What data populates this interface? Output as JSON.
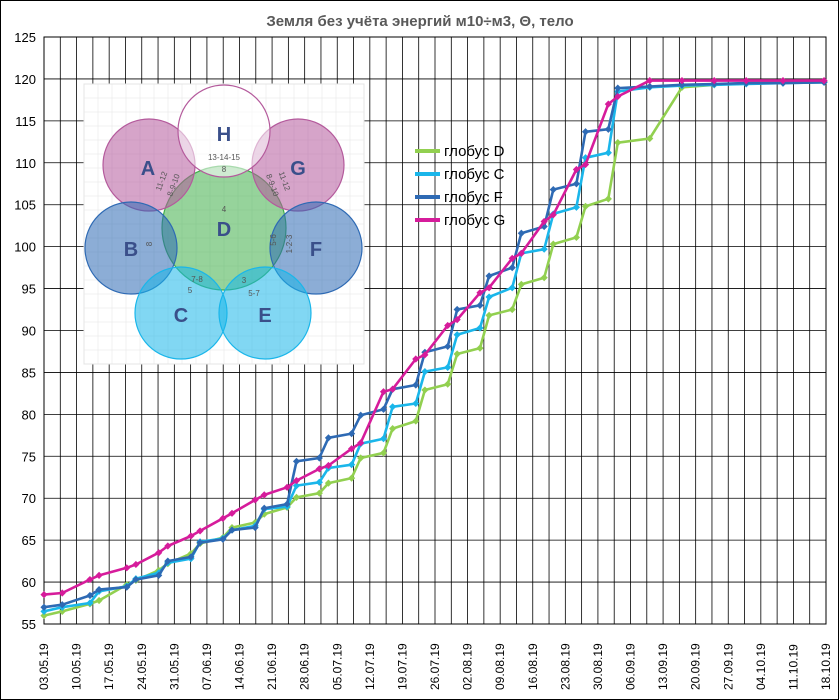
{
  "chart_data": {
    "type": "line",
    "title": "Земля без учёта энергий м10÷м3, Θ, тело",
    "ylim": [
      55,
      125
    ],
    "y_ticks": [
      55,
      60,
      65,
      70,
      75,
      80,
      85,
      90,
      95,
      100,
      105,
      110,
      115,
      120,
      125
    ],
    "x_tick_labels": [
      "03.05.19",
      "10.05.19",
      "17.05.19",
      "24.05.19",
      "31.05.19",
      "07.06.19",
      "14.06.19",
      "21.06.19",
      "28.06.19",
      "05.07.19",
      "12.07.19",
      "19.07.19",
      "26.07.19",
      "02.08.19",
      "09.08.19",
      "16.08.19",
      "23.08.19",
      "30.08.19",
      "06.09.19",
      "13.09.19",
      "20.09.19",
      "27.09.19",
      "04.10.19",
      "11.10.19",
      "18.10.19"
    ],
    "grid": true,
    "legend_position": "top-center",
    "series": [
      {
        "name": "глобус D",
        "color": "#92d050",
        "values": [
          56,
          56.5,
          57.4,
          57.8,
          59.7,
          60.2,
          61.4,
          62.2,
          63.4,
          64.6,
          65.3,
          66.5,
          67.1,
          68.1,
          68.9,
          70.1,
          70.6,
          71.8,
          72.4,
          74.8,
          75.4,
          78.3,
          79.2,
          82.9,
          83.6,
          87.2,
          87.9,
          91.8,
          92.5,
          95.5,
          96.3,
          100.3,
          101.1,
          104.8,
          105.7,
          112.4,
          112.9,
          119,
          119.3,
          119.5,
          119.6,
          119.7
        ]
      },
      {
        "name": "глобус C",
        "color": "#1ab6ea",
        "values": [
          56.5,
          57,
          57.5,
          58.9,
          59.5,
          60.4,
          61.1,
          62.3,
          62.8,
          64.8,
          65.2,
          66.2,
          66.7,
          68.7,
          69,
          71.5,
          71.9,
          73.6,
          74,
          76.5,
          77.1,
          80.9,
          81.3,
          85.1,
          85.6,
          89.5,
          90.3,
          94,
          95.1,
          99.2,
          99.7,
          103.9,
          104.7,
          110.6,
          111.2,
          118.5,
          119,
          119.2,
          119.3,
          119.4,
          119.5,
          119.6
        ]
      },
      {
        "name": "глобус F",
        "color": "#2e6ab4",
        "values": [
          57,
          57.3,
          58.4,
          59.1,
          59.4,
          60.3,
          60.8,
          62.5,
          63,
          64.7,
          65.1,
          66.2,
          66.5,
          68.8,
          69.3,
          74.4,
          74.8,
          77.2,
          77.7,
          79.9,
          80.6,
          83,
          83.5,
          87.4,
          88.1,
          92.5,
          93,
          96.5,
          97.5,
          101.6,
          102.4,
          106.8,
          107.5,
          113.7,
          114,
          118.9,
          119.1,
          119.3,
          119.4,
          119.5,
          119.5,
          119.6
        ]
      },
      {
        "name": "глобус G",
        "color": "#d61c9b",
        "values": [
          58.5,
          58.7,
          60.3,
          60.8,
          61.7,
          62.1,
          63.5,
          64.3,
          65.5,
          66.1,
          67.6,
          68.2,
          69.8,
          70.4,
          71.3,
          72.1,
          73.5,
          73.9,
          75.9,
          76.6,
          82.7,
          83,
          86.6,
          87.1,
          90.6,
          91.3,
          94.5,
          95.1,
          98.6,
          99.2,
          103,
          103.8,
          109.2,
          109.8,
          117,
          117.9,
          119.8,
          119.8,
          119.8,
          119.8,
          119.8,
          119.8
        ]
      }
    ],
    "x_positions": [
      0,
      0.56,
      1.41,
      1.69,
      2.54,
      2.82,
      3.52,
      3.8,
      4.51,
      4.79,
      5.49,
      5.77,
      6.48,
      6.76,
      7.46,
      7.75,
      8.45,
      8.73,
      9.44,
      9.72,
      10.42,
      10.7,
      11.41,
      11.69,
      12.39,
      12.68,
      13.38,
      13.66,
      14.37,
      14.65,
      15.35,
      15.63,
      16.34,
      16.62,
      17.32,
      17.61,
      18.59,
      19.58,
      20.57,
      21.55,
      22.68,
      23.94
    ],
    "inset": {
      "circles": [
        {
          "label": "H",
          "text": "13-14-15",
          "text2": "8",
          "color": "#ffffff"
        },
        {
          "label": "A",
          "color": "#b45a9c"
        },
        {
          "label": "G",
          "color": "#b45a9c"
        },
        {
          "label": "D",
          "text": "4",
          "color": "#3fae49"
        },
        {
          "label": "B",
          "color": "#2e6ab4"
        },
        {
          "label": "F",
          "color": "#2e6ab4"
        },
        {
          "label": "C",
          "color": "#1ab6ea"
        },
        {
          "label": "E",
          "color": "#1ab6ea"
        }
      ],
      "overlap_labels": [
        "11-12",
        "8-9-10",
        "8-9-10",
        "11-12",
        "8",
        "5-6",
        "1-2-3",
        "7-8",
        "5",
        "3",
        "5-7"
      ]
    }
  }
}
